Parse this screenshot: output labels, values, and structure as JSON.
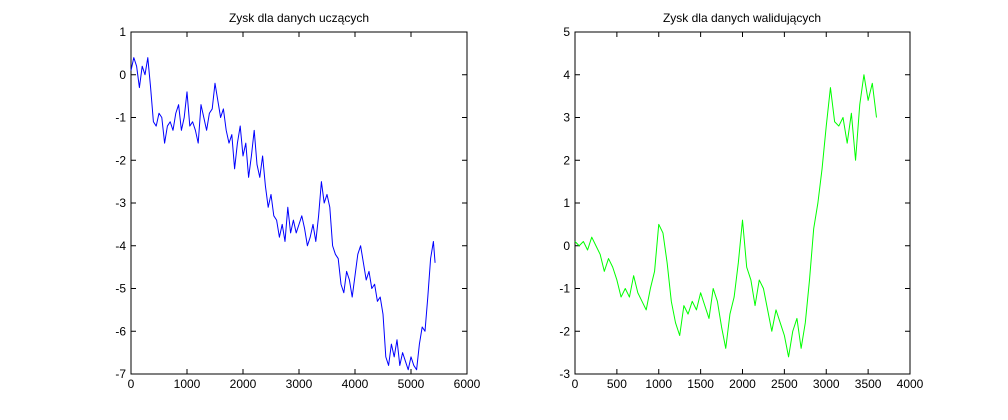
{
  "chart_data": [
    {
      "type": "line",
      "title": "Zysk dla danych uczących",
      "xlabel": "",
      "ylabel": "",
      "xlim": [
        0,
        6000
      ],
      "ylim": [
        -7,
        1
      ],
      "xticks": [
        0,
        1000,
        2000,
        3000,
        4000,
        5000,
        6000
      ],
      "yticks": [
        1,
        0,
        -1,
        -2,
        -3,
        -4,
        -5,
        -6,
        -7
      ],
      "grid": false,
      "series": [
        {
          "color": "#0000ff",
          "x": [
            0,
            50,
            100,
            150,
            200,
            250,
            300,
            350,
            400,
            450,
            500,
            550,
            600,
            650,
            700,
            750,
            800,
            850,
            900,
            950,
            1000,
            1050,
            1100,
            1150,
            1200,
            1250,
            1300,
            1350,
            1400,
            1450,
            1500,
            1550,
            1600,
            1650,
            1700,
            1750,
            1800,
            1850,
            1900,
            1950,
            2000,
            2050,
            2100,
            2150,
            2200,
            2250,
            2300,
            2350,
            2400,
            2450,
            2500,
            2550,
            2600,
            2650,
            2700,
            2750,
            2800,
            2850,
            2900,
            2950,
            3000,
            3050,
            3100,
            3150,
            3200,
            3250,
            3300,
            3350,
            3400,
            3450,
            3500,
            3550,
            3600,
            3650,
            3700,
            3750,
            3800,
            3850,
            3900,
            3950,
            4000,
            4050,
            4100,
            4150,
            4200,
            4250,
            4300,
            4350,
            4400,
            4450,
            4500,
            4550,
            4600,
            4650,
            4700,
            4750,
            4800,
            4850,
            4900,
            4950,
            5000,
            5050,
            5100,
            5150,
            5200,
            5250,
            5300,
            5350,
            5400,
            5430
          ],
          "y": [
            0.1,
            0.4,
            0.2,
            -0.3,
            0.2,
            0.0,
            0.4,
            -0.3,
            -1.1,
            -1.2,
            -0.9,
            -1.0,
            -1.6,
            -1.2,
            -1.1,
            -1.3,
            -0.9,
            -0.7,
            -1.3,
            -1.0,
            -0.4,
            -1.2,
            -1.1,
            -1.3,
            -1.6,
            -0.7,
            -1.0,
            -1.3,
            -0.9,
            -0.8,
            -0.2,
            -0.6,
            -1.0,
            -0.8,
            -1.3,
            -1.6,
            -1.4,
            -2.2,
            -1.6,
            -1.2,
            -1.9,
            -1.6,
            -2.4,
            -1.9,
            -1.3,
            -2.1,
            -2.4,
            -1.9,
            -2.6,
            -3.1,
            -2.8,
            -3.3,
            -3.4,
            -3.8,
            -3.5,
            -3.9,
            -3.1,
            -3.7,
            -3.4,
            -3.7,
            -3.5,
            -3.3,
            -3.6,
            -4.0,
            -3.8,
            -3.5,
            -3.9,
            -3.3,
            -2.5,
            -3.0,
            -2.8,
            -3.1,
            -4.0,
            -4.2,
            -4.3,
            -4.9,
            -5.1,
            -4.6,
            -4.8,
            -5.2,
            -4.7,
            -4.2,
            -4.0,
            -4.4,
            -4.8,
            -4.6,
            -5.0,
            -4.9,
            -5.3,
            -5.2,
            -5.6,
            -6.6,
            -6.8,
            -6.3,
            -6.6,
            -6.2,
            -6.8,
            -6.5,
            -6.7,
            -6.9,
            -6.6,
            -6.8,
            -6.9,
            -6.3,
            -5.9,
            -6.0,
            -5.2,
            -4.3,
            -3.9,
            -4.4
          ]
        }
      ]
    },
    {
      "type": "line",
      "title": "Zysk dla danych walidujących",
      "xlabel": "",
      "ylabel": "",
      "xlim": [
        0,
        4000
      ],
      "ylim": [
        -3,
        5
      ],
      "xticks": [
        0,
        500,
        1000,
        1500,
        2000,
        2500,
        3000,
        3500,
        4000
      ],
      "yticks": [
        5,
        4,
        3,
        2,
        1,
        0,
        -1,
        -2,
        -3
      ],
      "grid": false,
      "series": [
        {
          "color": "#00ff00",
          "x": [
            0,
            50,
            100,
            150,
            200,
            250,
            300,
            350,
            400,
            450,
            500,
            550,
            600,
            650,
            700,
            750,
            800,
            850,
            900,
            950,
            1000,
            1050,
            1100,
            1150,
            1200,
            1250,
            1300,
            1350,
            1400,
            1450,
            1500,
            1550,
            1600,
            1650,
            1700,
            1750,
            1800,
            1850,
            1900,
            1950,
            2000,
            2050,
            2100,
            2150,
            2200,
            2250,
            2300,
            2350,
            2400,
            2450,
            2500,
            2550,
            2600,
            2650,
            2700,
            2750,
            2800,
            2850,
            2900,
            2950,
            3000,
            3050,
            3100,
            3150,
            3200,
            3250,
            3300,
            3350,
            3400,
            3450,
            3500,
            3550,
            3600
          ],
          "y": [
            0.1,
            0.0,
            0.1,
            -0.1,
            0.2,
            0.0,
            -0.2,
            -0.6,
            -0.3,
            -0.5,
            -0.8,
            -1.2,
            -1.0,
            -1.2,
            -0.7,
            -1.1,
            -1.3,
            -1.5,
            -1.0,
            -0.6,
            0.5,
            0.3,
            -0.4,
            -1.3,
            -1.8,
            -2.1,
            -1.4,
            -1.6,
            -1.3,
            -1.5,
            -1.1,
            -1.4,
            -1.7,
            -1.0,
            -1.3,
            -1.9,
            -2.4,
            -1.6,
            -1.2,
            -0.4,
            0.6,
            -0.5,
            -0.8,
            -1.4,
            -0.8,
            -1.0,
            -1.5,
            -2.0,
            -1.5,
            -1.8,
            -2.1,
            -2.6,
            -2.0,
            -1.7,
            -2.4,
            -1.8,
            -0.8,
            0.4,
            1.0,
            1.8,
            2.8,
            3.7,
            2.9,
            2.8,
            3.0,
            2.4,
            3.1,
            2.0,
            3.3,
            4.0,
            3.4,
            3.8,
            3.0
          ]
        }
      ]
    }
  ]
}
